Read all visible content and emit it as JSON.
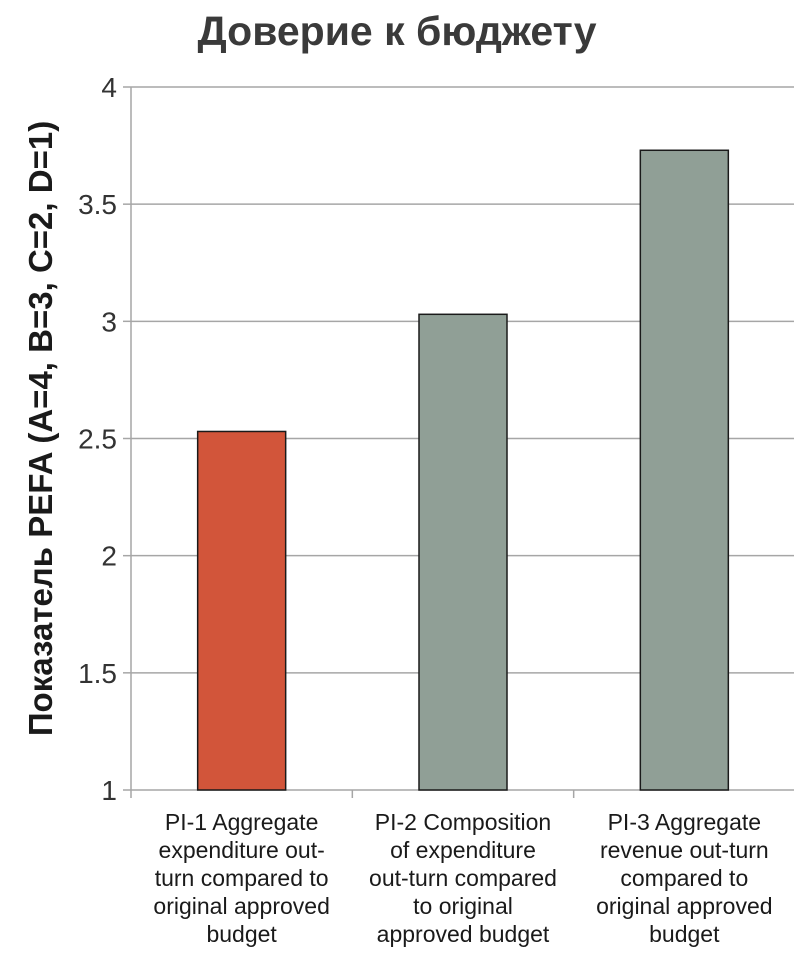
{
  "chart_data": {
    "type": "bar",
    "title": "Доверие к бюджету",
    "ylabel": "Показатель PEFA (A=4, B=3, C=2, D=1)",
    "xlabel": "",
    "ylim": [
      1,
      4
    ],
    "yticks": [
      "1",
      "1.5",
      "2",
      "2.5",
      "3",
      "3.5",
      "4"
    ],
    "grid": true,
    "categories": [
      "PI-1 Aggregate expenditure out-turn compared to original approved budget",
      "PI-2 Composition of expenditure out-turn compared to original approved budget",
      "PI-3 Aggregate revenue out-turn compared to original approved budget"
    ],
    "category_lines": [
      [
        "PI-1 Aggregate",
        "expenditure out-",
        "turn compared to",
        "original approved",
        "budget"
      ],
      [
        "PI-2 Composition",
        "of expenditure",
        "out-turn compared",
        "to original",
        "approved budget"
      ],
      [
        "PI-3 Aggregate",
        "revenue out-turn",
        "compared to",
        "original approved",
        "budget"
      ]
    ],
    "values": [
      2.53,
      3.03,
      3.73
    ],
    "colors": [
      "#d2553a",
      "#909f96",
      "#909f96"
    ],
    "gridline_color": "#a6a6a6"
  }
}
